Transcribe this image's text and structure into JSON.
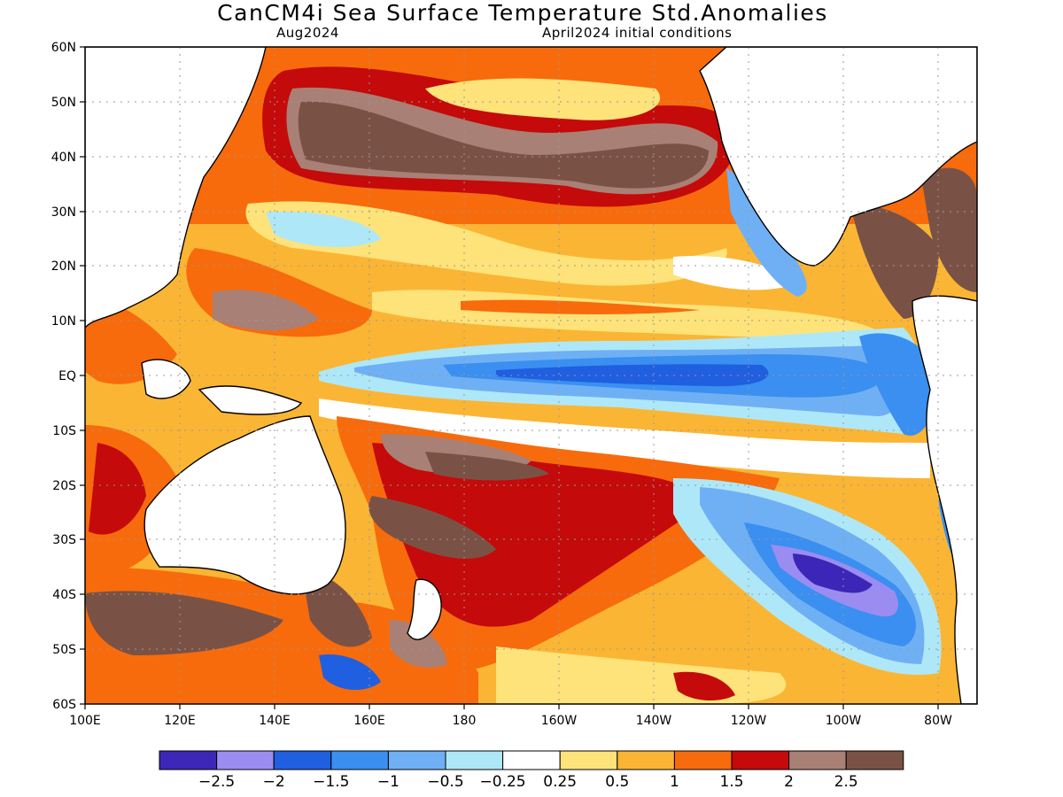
{
  "title": "CanCM4i Sea Surface Temperature Std.Anomalies",
  "subtitle_left": "Aug2024",
  "subtitle_right": "April2024 initial conditions",
  "lat_labels": [
    "60N",
    "50N",
    "40N",
    "30N",
    "20N",
    "10N",
    "EQ",
    "10S",
    "20S",
    "30S",
    "40S",
    "50S",
    "60S"
  ],
  "lon_labels": [
    "100E",
    "120E",
    "140E",
    "160E",
    "180",
    "160W",
    "140W",
    "120W",
    "100W",
    "80W"
  ],
  "colorbar": {
    "colors": [
      "#3b26b8",
      "#9b8cf2",
      "#1f5fe0",
      "#3a8ff0",
      "#6fb0f5",
      "#aee8f8",
      "#ffffff",
      "#fde37a",
      "#fbb534",
      "#f76b0c",
      "#c40a0a",
      "#a98075",
      "#7a5245"
    ],
    "labels": [
      "−2.5",
      "−2",
      "−1.5",
      "−1",
      "−0.5",
      "−0.25",
      "0.25",
      "0.5",
      "1",
      "1.5",
      "2",
      "2.5"
    ]
  },
  "regions": [
    {
      "name": "north-pacific-warm-brown",
      "color": "#7a5245"
    },
    {
      "name": "equatorial-cold-tongue",
      "color": "#3a8ff0"
    },
    {
      "name": "southeast-pacific-cold-anomaly",
      "color": "#3b26b8"
    },
    {
      "name": "south-pacific-warm-band",
      "color": "#c40a0a"
    }
  ]
}
